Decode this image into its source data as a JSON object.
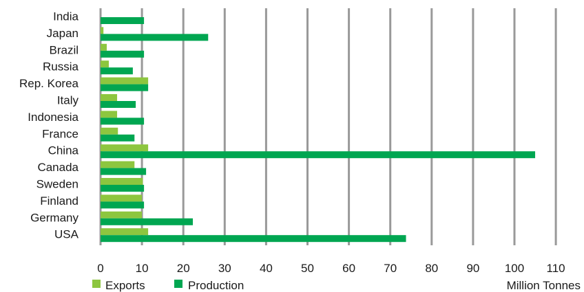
{
  "chart_data": {
    "type": "bar",
    "orientation": "horizontal",
    "categories": [
      "India",
      "Japan",
      "Brazil",
      "Russia",
      "Rep. Korea",
      "Italy",
      "Indonesia",
      "France",
      "China",
      "Canada",
      "Sweden",
      "Finland",
      "Germany",
      "USA"
    ],
    "series": [
      {
        "name": "Exports",
        "color": "#8dc63f",
        "values": [
          0,
          0.7,
          1.5,
          2,
          11.5,
          4,
          4,
          4.2,
          11.5,
          8.2,
          10.2,
          10,
          10,
          11.5
        ]
      },
      {
        "name": "Production",
        "color": "#00a651",
        "values": [
          10.5,
          26,
          10.5,
          7.8,
          11.5,
          8.5,
          10.5,
          8.2,
          105,
          11,
          10.5,
          10.5,
          22.3,
          73.8
        ]
      }
    ],
    "xlim": [
      0,
      110
    ],
    "xticks": [
      0,
      10,
      20,
      30,
      40,
      50,
      60,
      70,
      80,
      90,
      100,
      110
    ],
    "xlabel": "Million Tonnes",
    "gridlines": "vertical",
    "grid_color": "#999999",
    "legend_position": "bottom-left"
  }
}
